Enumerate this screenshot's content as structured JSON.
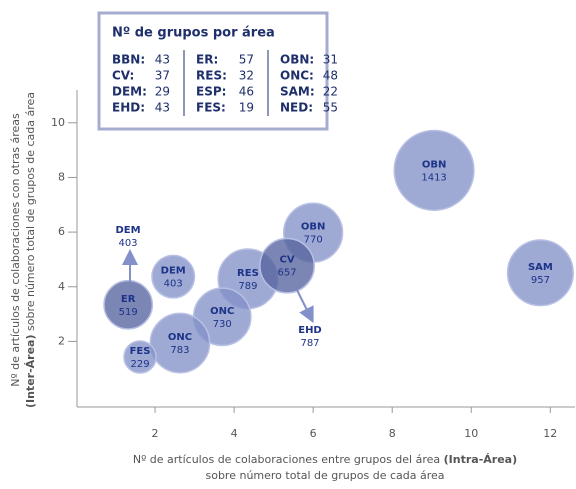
{
  "chart_data": {
    "type": "bubble",
    "legend_box": {
      "title": "Nº de grupos por área",
      "columns": [
        [
          [
            "BBN:",
            43
          ],
          [
            "CV:",
            37
          ],
          [
            "DEM:",
            29
          ],
          [
            "EHD:",
            43
          ]
        ],
        [
          [
            "ER:",
            57
          ],
          [
            "RES:",
            32
          ],
          [
            "ESP:",
            46
          ],
          [
            "FES:",
            19
          ]
        ],
        [
          [
            "OBN:",
            31
          ],
          [
            "ONC:",
            48
          ],
          [
            "SAM:",
            22
          ],
          [
            "NED:",
            55
          ]
        ]
      ]
    },
    "x_label": [
      "Nº de artículos de colaboraciones entre grupos del área ",
      "(Intra-Área)",
      "sobre número total de grupos de cada área"
    ],
    "y_label": [
      "Nº de artículos de colaboraciones con otras áreas",
      "(Inter-Área)",
      " sobre número total de grupos de cada área"
    ],
    "xlim": [
      0,
      12.6
    ],
    "xticks": [
      2,
      4,
      6,
      8,
      10,
      12
    ],
    "ylim": [
      -0.4,
      11.2
    ],
    "yticks": [
      2,
      4,
      6,
      8,
      10
    ],
    "color": "#8391c8",
    "points": [
      {
        "label": "OBN",
        "x": 9.06,
        "y": 8.26,
        "size": 1413
      },
      {
        "label": "SAM",
        "x": 11.75,
        "y": 4.51,
        "size": 957
      },
      {
        "label": "OBN",
        "x": 6.0,
        "y": 5.98,
        "size": 770
      },
      {
        "label": "RES",
        "x": 4.35,
        "y": 4.29,
        "size": 789
      },
      {
        "label": "CV",
        "x": 5.34,
        "y": 4.77,
        "size": 657,
        "color": "#56649f"
      },
      {
        "label": "ONC",
        "x": 3.7,
        "y": 2.9,
        "size": 730
      },
      {
        "label": "DEM",
        "x": 2.46,
        "y": 4.37,
        "size": 403
      },
      {
        "label": "ER",
        "x": 1.32,
        "y": 3.34,
        "size": 519,
        "color": "#56649f"
      },
      {
        "label": "ONC",
        "x": 2.63,
        "y": 1.94,
        "size": 783
      },
      {
        "label": "FES",
        "x": 1.62,
        "y": 1.43,
        "size": 229
      }
    ],
    "annotations": [
      {
        "label": "DEM",
        "value": 403
      },
      {
        "label": "EHD",
        "value": 787
      }
    ]
  }
}
